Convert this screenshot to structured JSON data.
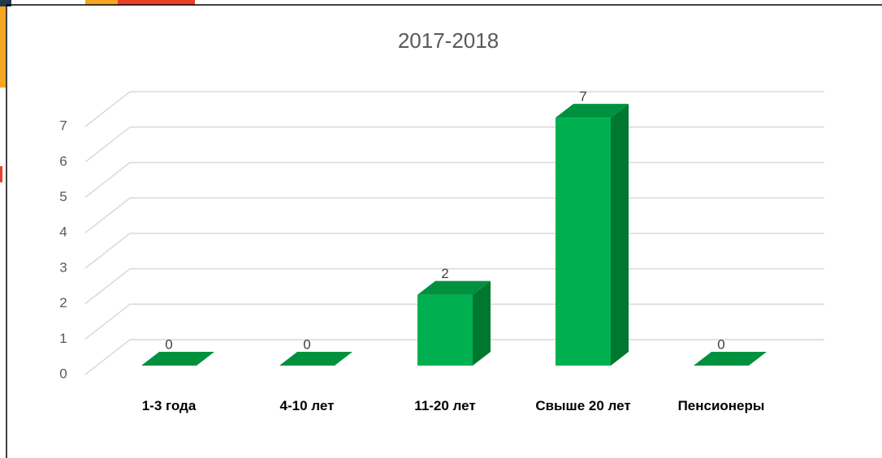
{
  "chart_data": {
    "type": "bar3d",
    "title": "2017-2018",
    "categories": [
      "1-3 года",
      "4-10 лет",
      "11-20 лет",
      "Свыше 20 лет",
      "Пенсионеры"
    ],
    "values": [
      0,
      0,
      2,
      7,
      0
    ],
    "color": "#00b050",
    "ylim": [
      0,
      7
    ],
    "yticks": [
      0,
      1,
      2,
      3,
      4,
      5,
      6,
      7
    ],
    "grid": true
  }
}
